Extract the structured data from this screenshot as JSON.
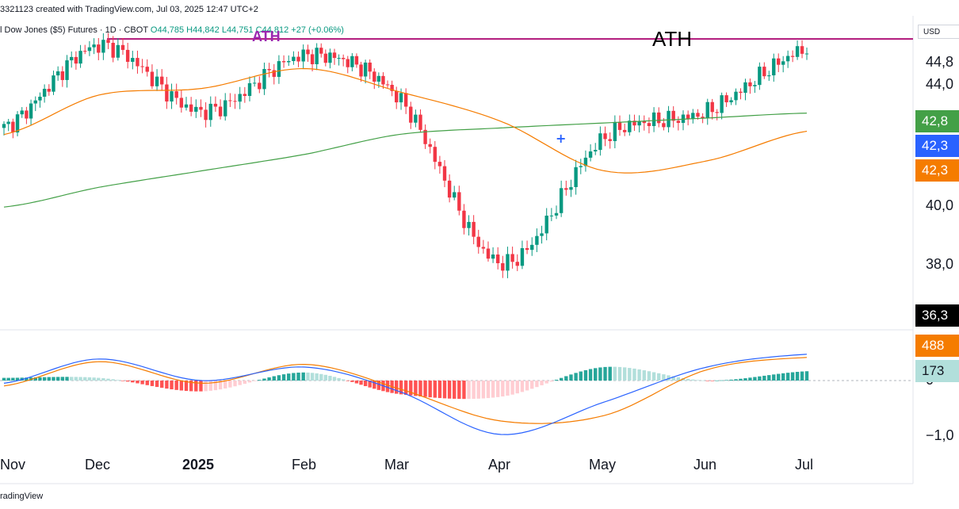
{
  "header": {
    "created_by": "3321123 created with TradingView.com, Jul 03, 2025 12:47 UTC+2",
    "symbol": "l Dow Jones ($5) Futures · 1D · CBOT",
    "ohlc": "O44,785  H44,842  L44,751  C44,812",
    "change": "+27 (+0.06%)"
  },
  "annotations": {
    "ath_small": "ATH",
    "ath_big": "ATH"
  },
  "currency": "USD",
  "footer": "radingView",
  "price_badges": [
    {
      "label": "44,8",
      "color": "#ffffff",
      "text_color": "#131722"
    },
    {
      "label": "42,8",
      "color": "#43a047"
    },
    {
      "label": "42,3",
      "color": "#2962ff"
    },
    {
      "label": "42,3",
      "color": "#f57c00"
    },
    {
      "label": "36,3",
      "color": "#000000"
    },
    {
      "label": "488",
      "color": "#f57c00"
    },
    {
      "label": "173",
      "color": "#b2dfdb",
      "text_color": "#131722"
    }
  ],
  "colors": {
    "up": "#089981",
    "down": "#f23645",
    "ma_fast": "#f57c00",
    "ma_slow": "#43a047",
    "ath_line": "#b0157a",
    "macd": "#2962ff",
    "signal": "#f57c00"
  },
  "chart_data": {
    "type": "candlestick",
    "title": "Dow Jones ($5) Futures · 1D · CBOT",
    "y_axis_ticks": [
      "44,8",
      "44,0",
      "42,8",
      "42,3",
      "40,0",
      "38,0",
      "36,3"
    ],
    "x_axis_ticks": [
      "Nov",
      "Dec",
      "2025",
      "Feb",
      "Mar",
      "Apr",
      "May",
      "Jun",
      "Jul"
    ],
    "ylim": [
      36300,
      45800
    ],
    "ath_level": 45100,
    "series": [
      {
        "name": "price (close, approx)",
        "x": [
          "Nov",
          "Dec",
          "2025",
          "Feb",
          "Mar",
          "Apr",
          "May",
          "Jun",
          "Jul"
        ],
        "values": [
          42400,
          44900,
          42900,
          44600,
          43300,
          38300,
          42100,
          42900,
          44812
        ]
      },
      {
        "name": "fast MA (approx)",
        "x": [
          "Nov",
          "Dec",
          "2025",
          "Feb",
          "Mar",
          "Apr",
          "May",
          "Jun",
          "Jul"
        ],
        "values": [
          42200,
          43400,
          43600,
          44200,
          43500,
          42600,
          41100,
          41400,
          42300
        ]
      },
      {
        "name": "slow MA (approx)",
        "x": [
          "Nov",
          "Dec",
          "2025",
          "Feb",
          "Mar",
          "Apr",
          "May",
          "Jun",
          "Jul"
        ],
        "values": [
          40000,
          40600,
          41100,
          41600,
          42200,
          42400,
          42550,
          42700,
          42850
        ]
      }
    ],
    "indicator": {
      "type": "macd",
      "y_axis_ticks": [
        "0",
        "−1,0"
      ],
      "x": [
        "Nov",
        "Dec",
        "2025",
        "Feb",
        "Mar",
        "Apr",
        "May",
        "Jun",
        "Jul"
      ],
      "macd": [
        -50,
        400,
        0,
        250,
        -200,
        -1000,
        -400,
        250,
        488
      ],
      "signal": [
        -100,
        350,
        -50,
        300,
        -150,
        -750,
        -650,
        200,
        430
      ],
      "histogram": [
        50,
        50,
        -200,
        150,
        -250,
        -300,
        250,
        0,
        173
      ]
    }
  }
}
